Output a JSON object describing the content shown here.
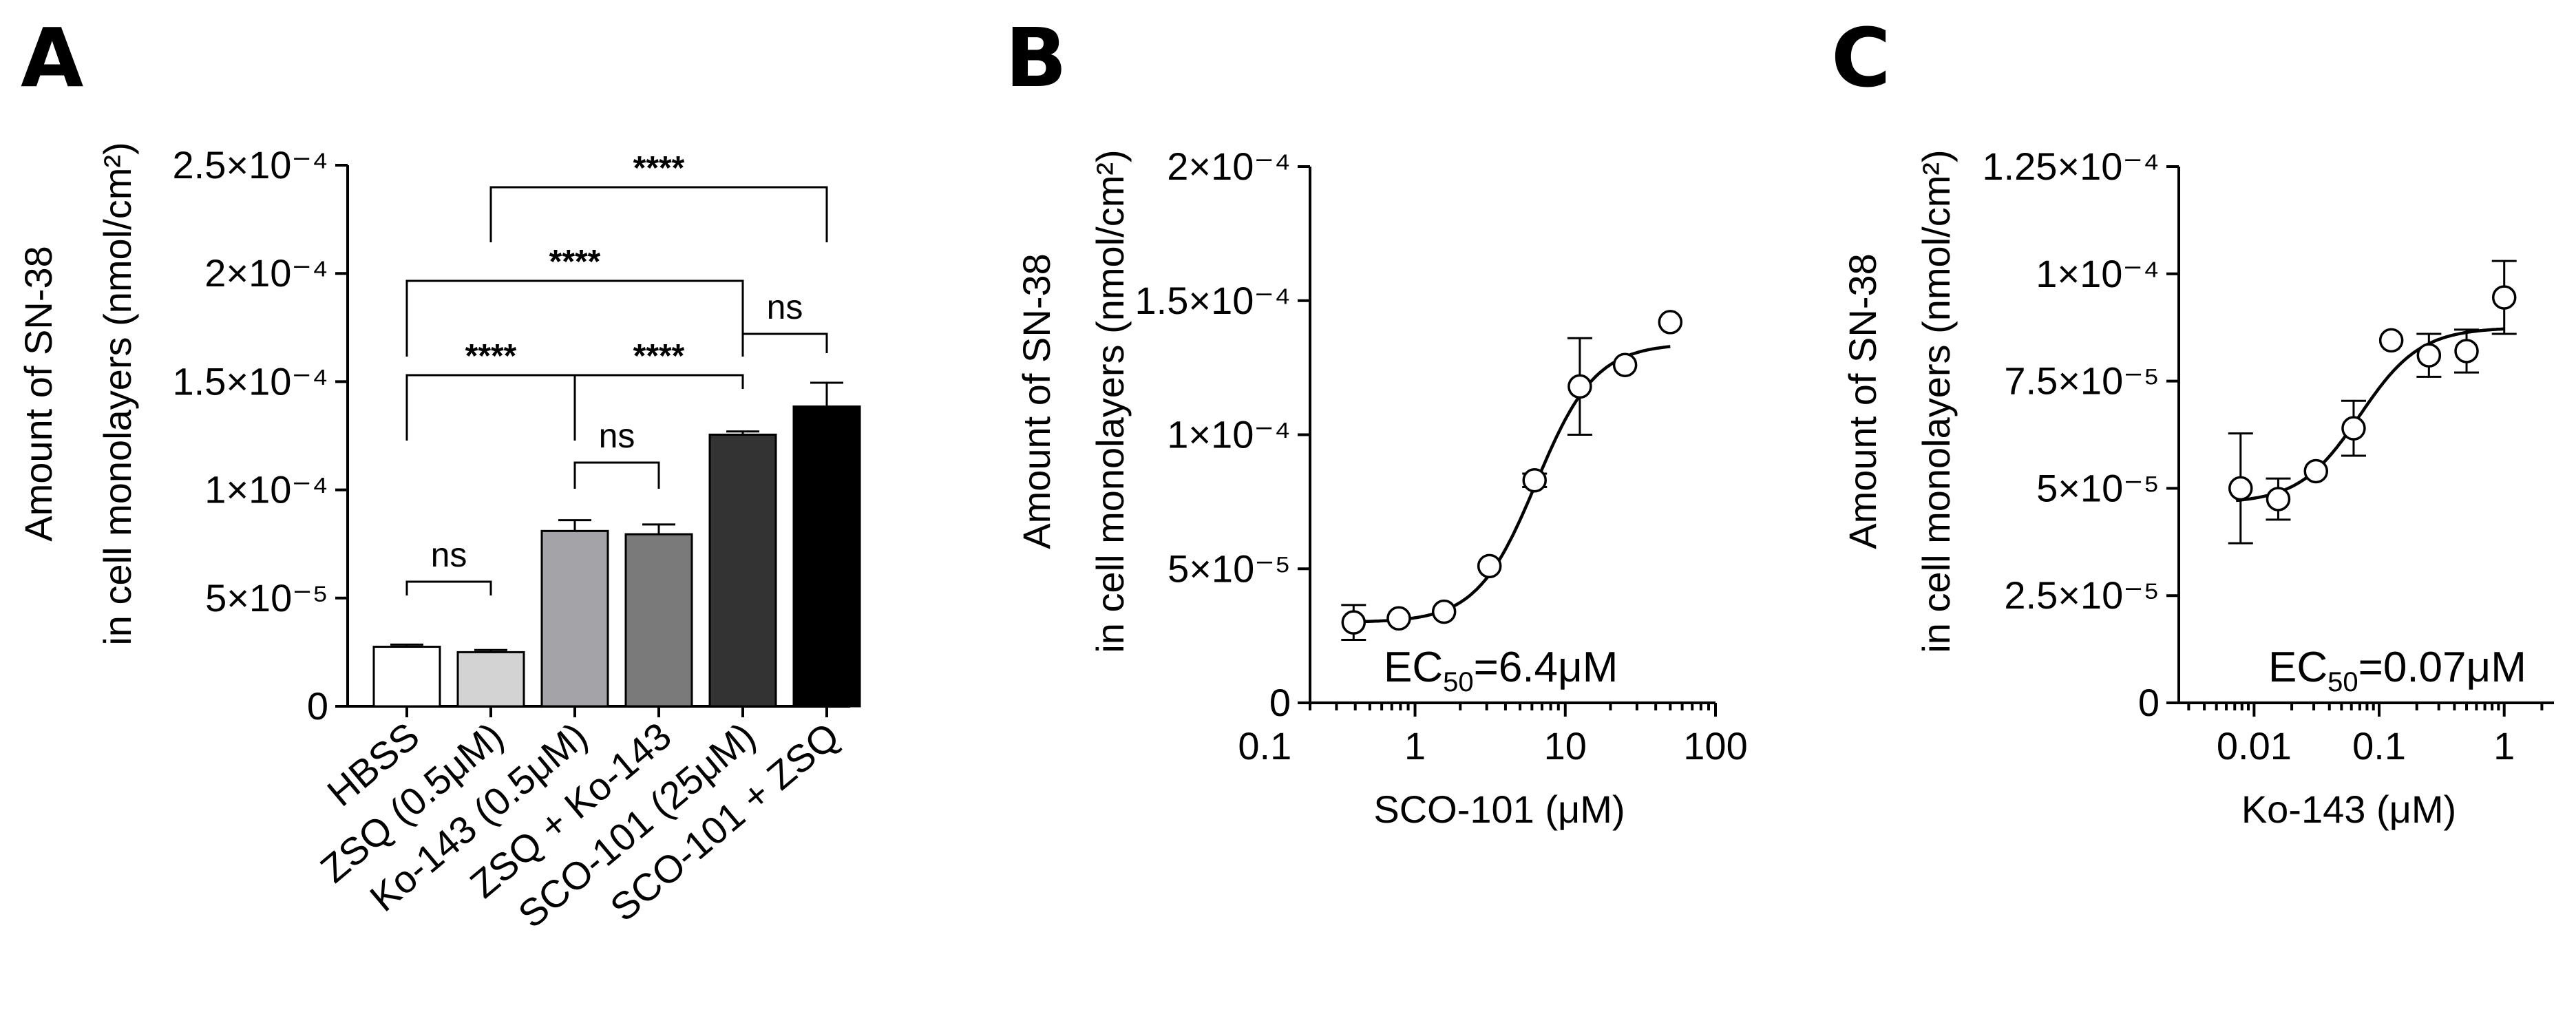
{
  "chart_data": [
    {
      "id": "A",
      "panel_label": "A",
      "type": "bar",
      "ylabel_line1": "Amount of SN-38",
      "ylabel_line2": "in cell monolayers (nmol/cm²)",
      "ylim": [
        0,
        0.00025
      ],
      "yticks": [
        0,
        5e-05,
        0.0001,
        0.00015,
        0.0002,
        0.00025
      ],
      "ytick_labels": [
        "0",
        "5×10⁻⁵",
        "1×10⁻⁴",
        "1.5×10⁻⁴",
        "2×10⁻⁴",
        "2.5×10⁻⁴"
      ],
      "categories": [
        "HBSS",
        "ZSQ (0.5μM)",
        "Ko-143 (0.5μM)",
        "ZSQ + Ko-143",
        "SCO-101 (25μM)",
        "SCO-101 + ZSQ"
      ],
      "values": [
        2.75e-05,
        2.5e-05,
        8.1e-05,
        7.95e-05,
        0.0001255,
        0.0001385
      ],
      "errors": [
        1e-06,
        1e-06,
        5e-06,
        4.5e-06,
        1.5e-06,
        1.1e-05
      ],
      "colors": [
        "#ffffff",
        "#d3d3d3",
        "#a4a4a8",
        "#7a7a7a",
        "#333333",
        "#000000"
      ],
      "comparisons": [
        {
          "a": 0,
          "b": 1,
          "label": "ns"
        },
        {
          "a": 2,
          "b": 3,
          "label": "ns"
        },
        {
          "a": 0,
          "b": 2,
          "label": "****"
        },
        {
          "a": 2,
          "b": 4,
          "label": "****"
        },
        {
          "a": 4,
          "b": 5,
          "label": "ns"
        },
        {
          "a": 0,
          "b": 4,
          "label": "****"
        },
        {
          "a": 1,
          "b": 5,
          "label": "****"
        }
      ]
    },
    {
      "id": "B",
      "panel_label": "B",
      "type": "scatter",
      "x_scale": "log",
      "xlabel": "SCO-101 (μM)",
      "ylabel_line1": "Amount of SN-38",
      "ylabel_line2": "in cell monolayers (nmol/cm²)",
      "xlim": [
        0.2,
        100
      ],
      "ylim": [
        0,
        0.0002
      ],
      "xticks": [
        0.1,
        1,
        10,
        100
      ],
      "xtick_labels": [
        "0.1",
        "1",
        "10",
        "100"
      ],
      "yticks": [
        0,
        5e-05,
        0.0001,
        0.00015,
        0.0002
      ],
      "ytick_labels": [
        "0",
        "5×10⁻⁵",
        "1×10⁻⁴",
        "1.5×10⁻⁴",
        "2×10⁻⁴"
      ],
      "points": [
        {
          "x": 0.39,
          "y": 3e-05,
          "err": 6.5e-06
        },
        {
          "x": 0.78,
          "y": 3.15e-05,
          "err": 0
        },
        {
          "x": 1.56,
          "y": 3.4e-05,
          "err": 0
        },
        {
          "x": 3.13,
          "y": 5.1e-05,
          "err": 0
        },
        {
          "x": 6.25,
          "y": 8.3e-05,
          "err": 2.5e-06
        },
        {
          "x": 12.5,
          "y": 0.000118,
          "err": 1.8e-05
        },
        {
          "x": 25,
          "y": 0.000126,
          "err": 0
        },
        {
          "x": 50,
          "y": 0.000142,
          "err": 0
        }
      ],
      "fit": {
        "bottom": 3e-05,
        "top": 0.000134,
        "ec50": 6.4,
        "hill": 2.2
      },
      "ec50_label": "EC",
      "ec50_sub": "50",
      "ec50_value": "=6.4μM"
    },
    {
      "id": "C",
      "panel_label": "C",
      "type": "scatter",
      "x_scale": "log",
      "xlabel": "Ko-143 (μM)",
      "ylabel_line1": "Amount of SN-38",
      "ylabel_line2": "in cell monolayers (nmol/cm²)",
      "xlim": [
        0.0025,
        2.5
      ],
      "ylim": [
        0,
        0.000125
      ],
      "xticks": [
        0.01,
        0.1,
        1
      ],
      "xtick_labels": [
        "0.01",
        "0.1",
        "1"
      ],
      "yticks": [
        0,
        2.5e-05,
        5e-05,
        7.5e-05,
        0.0001,
        0.000125
      ],
      "ytick_labels": [
        "0",
        "2.5×10⁻⁵",
        "5×10⁻⁵",
        "7.5×10⁻⁵",
        "1×10⁻⁴",
        "1.25×10⁻⁴"
      ],
      "points": [
        {
          "x": 0.0078,
          "y": 5e-05,
          "err": 1.28e-05
        },
        {
          "x": 0.0156,
          "y": 4.75e-05,
          "err": 4.8e-06
        },
        {
          "x": 0.03125,
          "y": 5.4e-05,
          "err": 0
        },
        {
          "x": 0.0625,
          "y": 6.4e-05,
          "err": 6.4e-06
        },
        {
          "x": 0.125,
          "y": 8.45e-05,
          "err": 0
        },
        {
          "x": 0.25,
          "y": 8.1e-05,
          "err": 5e-06
        },
        {
          "x": 0.5,
          "y": 8.2e-05,
          "err": 5e-06
        },
        {
          "x": 1,
          "y": 9.45e-05,
          "err": 8.5e-06
        }
      ],
      "fit": {
        "bottom": 4.65e-05,
        "top": 8.75e-05,
        "ec50": 0.07,
        "hill": 1.8
      },
      "ec50_label": "EC",
      "ec50_sub": "50",
      "ec50_value": "=0.07μM"
    }
  ]
}
